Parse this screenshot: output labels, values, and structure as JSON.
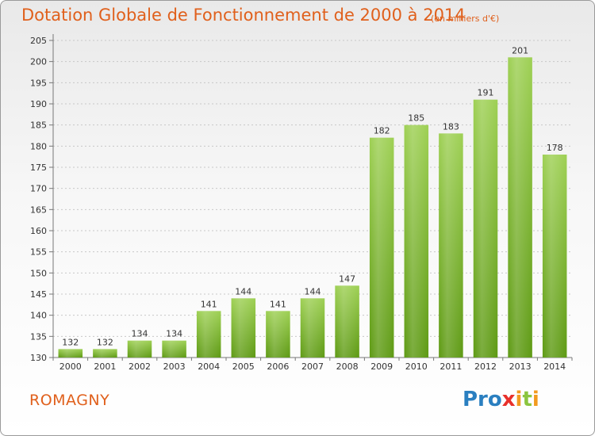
{
  "title": "Dotation Globale de Fonctionnement de 2000 à 2014",
  "unit_note": "(en milliers d'€)",
  "place_name": "ROMAGNY",
  "logo": {
    "text": "Proxiti",
    "parts": [
      "Pro",
      "x",
      "i",
      "t",
      "i"
    ]
  },
  "colors": {
    "accent": "#e0601c",
    "bar_top": "#9ed054",
    "bar_bottom": "#5e9a14"
  },
  "chart_data": {
    "type": "bar",
    "categories": [
      "2000",
      "2001",
      "2002",
      "2003",
      "2004",
      "2005",
      "2006",
      "2007",
      "2008",
      "2009",
      "2010",
      "2011",
      "2012",
      "2013",
      "2014"
    ],
    "values": [
      132,
      132,
      134,
      134,
      141,
      144,
      141,
      144,
      147,
      182,
      185,
      183,
      191,
      201,
      178
    ],
    "title": "Dotation Globale de Fonctionnement de 2000 à 2014",
    "xlabel": "",
    "ylabel": "",
    "ylim": [
      130,
      205
    ],
    "yticks": [
      130,
      135,
      140,
      145,
      150,
      155,
      160,
      165,
      170,
      175,
      180,
      185,
      190,
      195,
      200,
      205
    ],
    "grid": true,
    "legend": "none"
  }
}
